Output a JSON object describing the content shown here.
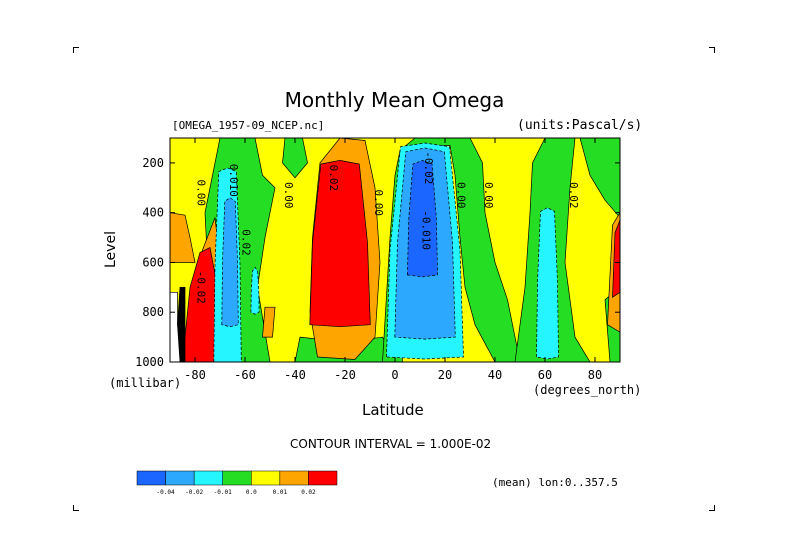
{
  "title": "Monthly Mean Omega",
  "file_label": "[OMEGA_1957-09_NCEP.nc]",
  "units_label": "(units:Pascal/s)",
  "contour_interval": "CONTOUR INTERVAL = 1.000E-02",
  "mean_label": "(mean) lon:0..357.5",
  "colors": {
    "lt_m004": "#1b66ff",
    "m004_m002": "#2ca9ff",
    "m002_m001": "#25f5ff",
    "m001_0": "#25dd22",
    "0_001": "#ffff00",
    "001_002": "#ffa500",
    "gt_002": "#ff0000"
  },
  "chart_data": {
    "type": "heatmap",
    "title": "Monthly Mean Omega",
    "xlabel": "Latitude",
    "xunit": "(degrees_north)",
    "ylabel": "Level",
    "yunit": "(millibar)",
    "xlim": [
      -90,
      90
    ],
    "ylim": [
      1000,
      100
    ],
    "x_ticks": [
      -80,
      -60,
      -40,
      -20,
      0,
      20,
      40,
      60,
      80
    ],
    "x_tick_labels": [
      "-80",
      "-60",
      "-40",
      "-20",
      "0",
      "20",
      "40",
      "60",
      "80"
    ],
    "y_ticks": [
      200,
      400,
      600,
      800,
      1000
    ],
    "y_tick_labels": [
      "200",
      "400",
      "600",
      "800",
      "1000"
    ],
    "contour_levels": [
      -0.04,
      -0.02,
      -0.01,
      0.0,
      0.01,
      0.02
    ],
    "colorbar_labels": [
      "-0.04",
      "-0.02",
      "-0.01",
      "0.0",
      "0.01",
      "0.02"
    ],
    "contour_labels": [
      "0.00",
      "0.00",
      "0.00",
      "0.00",
      "0.00",
      "0.02",
      "0.02",
      "0.010",
      "-0.02",
      "-0.010",
      "-0.02",
      "0.02"
    ],
    "regions": [
      {
        "name": "positive_west_lon_-22",
        "lat_range": [
          -31,
          -9
        ],
        "level_range": [
          150,
          990
        ],
        "value": "> 0.02"
      },
      {
        "name": "negative_tropics_lon_12",
        "lat_range": [
          4,
          21
        ],
        "level_range": [
          140,
          990
        ],
        "value": "< -0.04"
      },
      {
        "name": "negative_lon_-67",
        "lat_range": [
          -72,
          -64
        ],
        "level_range": [
          200,
          1000
        ],
        "value": "-0.04 to -0.02"
      },
      {
        "name": "negative_lon_61",
        "lat_range": [
          58,
          64
        ],
        "level_range": [
          400,
          980
        ],
        "value": "-0.02 to -0.01"
      },
      {
        "name": "positive_lon_-78",
        "lat_range": [
          -85,
          -70
        ],
        "level_range": [
          600,
          1000
        ],
        "value": "> 0.02"
      },
      {
        "name": "positive_lon_88",
        "lat_range": [
          85,
          90
        ],
        "level_range": [
          420,
          800
        ],
        "value": "> 0.02"
      }
    ]
  }
}
